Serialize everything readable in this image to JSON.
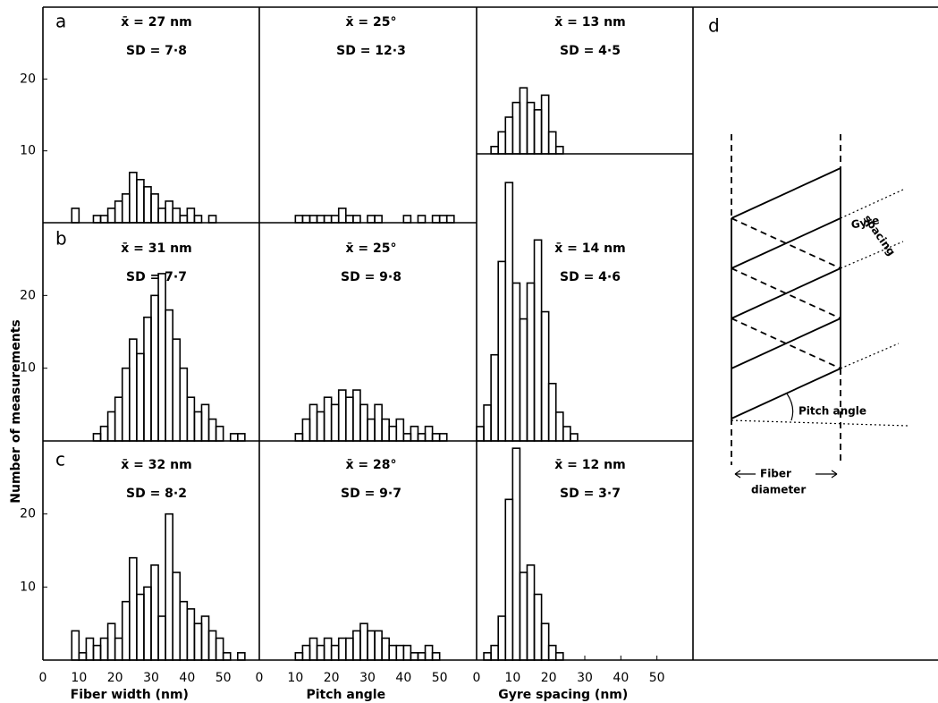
{
  "y_label": "Number of measurements",
  "chart_data": [
    {
      "type": "histogram",
      "panel_label": "a",
      "annotations": [
        "x̄ = 27 nm",
        "SD = 7·8"
      ],
      "color": "#000000",
      "bins": [
        0,
        2,
        4,
        6,
        8,
        10,
        12,
        14,
        16,
        18,
        20,
        22,
        24,
        26,
        28,
        30,
        32,
        34,
        36,
        38,
        40,
        42,
        44,
        46,
        48,
        50,
        52,
        54,
        56
      ],
      "values": [
        0,
        0,
        0,
        0,
        2,
        0,
        0,
        1,
        1,
        2,
        3,
        4,
        7,
        6,
        5,
        4,
        2,
        3,
        2,
        1,
        2,
        1,
        0,
        1,
        0,
        0,
        0,
        0
      ],
      "xlim": [
        0,
        60
      ],
      "ylim": [
        0,
        30
      ],
      "yticks": [
        10,
        20
      ]
    },
    {
      "type": "histogram",
      "annotations": [
        "x̄ = 25°",
        "SD = 12·3"
      ],
      "color": "#000000",
      "bins": [
        0,
        2,
        4,
        6,
        8,
        10,
        12,
        14,
        16,
        18,
        20,
        22,
        24,
        26,
        28,
        30,
        32,
        34,
        36,
        38,
        40,
        42,
        44,
        46,
        48,
        50,
        52,
        54,
        56
      ],
      "values": [
        0,
        0,
        0,
        0,
        0,
        1,
        1,
        1,
        1,
        1,
        1,
        2,
        1,
        1,
        0,
        1,
        1,
        0,
        0,
        0,
        1,
        0,
        1,
        0,
        1,
        1,
        1,
        0
      ],
      "xlim": [
        0,
        60
      ],
      "ylim": [
        0,
        30
      ]
    },
    {
      "type": "histogram",
      "annotations": [
        "x̄ = 13 nm",
        "SD = 4·5"
      ],
      "color": "#000000",
      "bins": [
        0,
        2,
        4,
        6,
        8,
        10,
        12,
        14,
        16,
        18,
        20,
        22,
        24,
        26,
        28,
        30,
        32,
        34,
        36,
        38,
        40,
        42,
        44,
        46,
        48,
        50,
        52,
        54,
        56
      ],
      "values": [
        0,
        0,
        1,
        3,
        5,
        7,
        9,
        7,
        6,
        8,
        3,
        1,
        0,
        0,
        0,
        0,
        0,
        0,
        0,
        0,
        0,
        0,
        0,
        0,
        0,
        0,
        0,
        0
      ],
      "xlim": [
        0,
        60
      ],
      "ylim": [
        0,
        20
      ]
    },
    {
      "type": "histogram",
      "panel_label": "b",
      "annotations": [
        "x̄ = 31 nm",
        "SD = 7·7"
      ],
      "color": "#000000",
      "bins": [
        0,
        2,
        4,
        6,
        8,
        10,
        12,
        14,
        16,
        18,
        20,
        22,
        24,
        26,
        28,
        30,
        32,
        34,
        36,
        38,
        40,
        42,
        44,
        46,
        48,
        50,
        52,
        54,
        56
      ],
      "values": [
        0,
        0,
        0,
        0,
        0,
        0,
        0,
        1,
        2,
        4,
        6,
        10,
        14,
        12,
        17,
        20,
        23,
        18,
        14,
        10,
        6,
        4,
        5,
        3,
        2,
        0,
        1,
        1
      ],
      "xlim": [
        0,
        60
      ],
      "ylim": [
        0,
        30
      ],
      "yticks": [
        10,
        20
      ]
    },
    {
      "type": "histogram",
      "annotations": [
        "x̄ = 25°",
        "SD = 9·8"
      ],
      "color": "#000000",
      "bins": [
        0,
        2,
        4,
        6,
        8,
        10,
        12,
        14,
        16,
        18,
        20,
        22,
        24,
        26,
        28,
        30,
        32,
        34,
        36,
        38,
        40,
        42,
        44,
        46,
        48,
        50,
        52,
        54,
        56
      ],
      "values": [
        0,
        0,
        0,
        0,
        0,
        1,
        3,
        5,
        4,
        6,
        5,
        7,
        6,
        7,
        5,
        3,
        5,
        3,
        2,
        3,
        1,
        2,
        1,
        2,
        1,
        1,
        0,
        0
      ],
      "xlim": [
        0,
        60
      ],
      "ylim": [
        0,
        30
      ]
    },
    {
      "type": "histogram",
      "annotations": [
        "x̄ = 14 nm",
        "SD = 4·6"
      ],
      "color": "#000000",
      "bins": [
        0,
        2,
        4,
        6,
        8,
        10,
        12,
        14,
        16,
        18,
        20,
        22,
        24,
        26,
        28,
        30,
        32,
        34,
        36,
        38,
        40,
        42,
        44,
        46,
        48,
        50,
        52,
        54,
        56
      ],
      "values": [
        2,
        5,
        12,
        25,
        36,
        22,
        17,
        22,
        28,
        18,
        8,
        4,
        2,
        1,
        0,
        0,
        0,
        0,
        0,
        0,
        0,
        0,
        0,
        0,
        0,
        0,
        0,
        0
      ],
      "xlim": [
        0,
        60
      ],
      "ylim": [
        0,
        40
      ]
    },
    {
      "type": "histogram",
      "panel_label": "c",
      "annotations": [
        "x̄ = 32 nm",
        "SD = 8·2"
      ],
      "color": "#000000",
      "bins": [
        0,
        2,
        4,
        6,
        8,
        10,
        12,
        14,
        16,
        18,
        20,
        22,
        24,
        26,
        28,
        30,
        32,
        34,
        36,
        38,
        40,
        42,
        44,
        46,
        48,
        50,
        52,
        54,
        56
      ],
      "values": [
        0,
        0,
        0,
        0,
        4,
        1,
        3,
        2,
        3,
        5,
        3,
        8,
        14,
        9,
        10,
        13,
        6,
        20,
        12,
        8,
        7,
        5,
        6,
        4,
        3,
        1,
        0,
        1
      ],
      "xlim": [
        0,
        60
      ],
      "ylim": [
        0,
        30
      ],
      "yticks": [
        10,
        20
      ],
      "xticks": [
        0,
        10,
        20,
        30,
        40,
        50
      ],
      "x_label": "Fiber width (nm)"
    },
    {
      "type": "histogram",
      "annotations": [
        "x̄ = 28°",
        "SD = 9·7"
      ],
      "color": "#000000",
      "bins": [
        0,
        2,
        4,
        6,
        8,
        10,
        12,
        14,
        16,
        18,
        20,
        22,
        24,
        26,
        28,
        30,
        32,
        34,
        36,
        38,
        40,
        42,
        44,
        46,
        48,
        50,
        52,
        54,
        56
      ],
      "values": [
        0,
        0,
        0,
        0,
        0,
        1,
        2,
        3,
        2,
        3,
        2,
        3,
        3,
        4,
        5,
        4,
        4,
        3,
        2,
        2,
        2,
        1,
        1,
        2,
        1,
        0,
        0,
        0
      ],
      "xlim": [
        0,
        60
      ],
      "ylim": [
        0,
        30
      ],
      "xticks": [
        0,
        10,
        20,
        30,
        40,
        50
      ],
      "x_label": "Pitch angle"
    },
    {
      "type": "histogram",
      "annotations": [
        "x̄ = 12 nm",
        "SD = 3·7"
      ],
      "color": "#000000",
      "bins": [
        0,
        2,
        4,
        6,
        8,
        10,
        12,
        14,
        16,
        18,
        20,
        22,
        24,
        26,
        28,
        30,
        32,
        34,
        36,
        38,
        40,
        42,
        44,
        46,
        48,
        50,
        52,
        54,
        56
      ],
      "values": [
        0,
        1,
        2,
        6,
        22,
        29,
        12,
        13,
        9,
        5,
        2,
        1,
        0,
        0,
        0,
        0,
        0,
        0,
        0,
        0,
        0,
        0,
        0,
        0,
        0,
        0,
        0,
        0
      ],
      "xlim": [
        0,
        60
      ],
      "ylim": [
        0,
        30
      ],
      "xticks": [
        0,
        10,
        20,
        30,
        40,
        50
      ],
      "x_label": "Gyre spacing (nm)"
    }
  ],
  "diagram": {
    "label": "d",
    "gyre_spacing": [
      "Gyre",
      "spacing"
    ],
    "pitch_angle": "Pitch angle",
    "fiber_diameter": [
      "Fiber",
      "diameter"
    ]
  }
}
